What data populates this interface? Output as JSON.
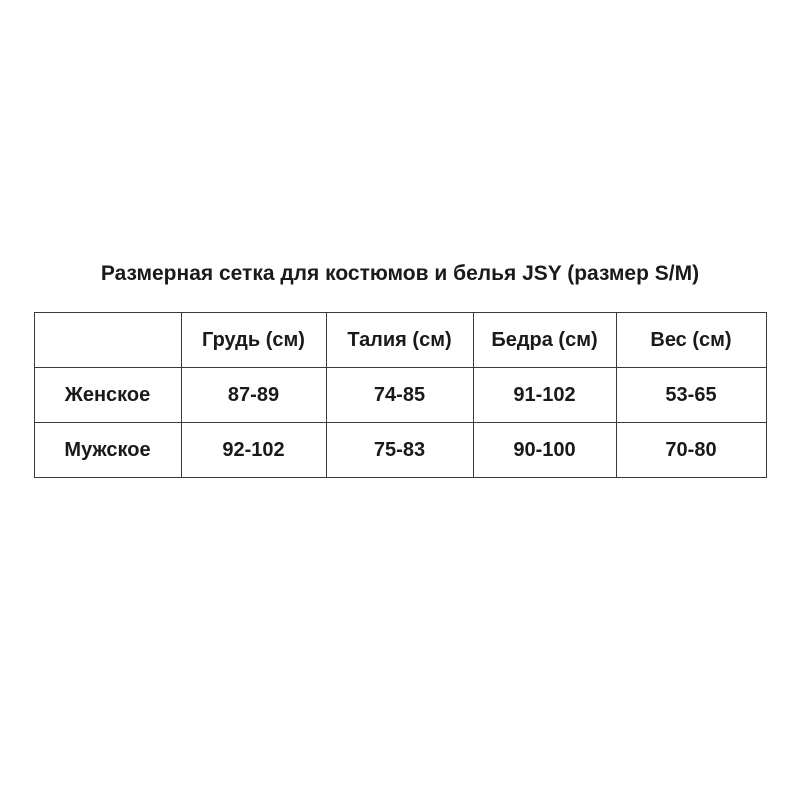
{
  "chart_data": {
    "type": "table",
    "title": "Размерная сетка для костюмов и белья JSY (размер S/M)",
    "columns": [
      "",
      "Грудь (см)",
      "Талия (см)",
      "Бедра (см)",
      "Вес (см)"
    ],
    "rows": [
      [
        "Женское",
        "87-89",
        "74-85",
        "91-102",
        "53-65"
      ],
      [
        "Мужское",
        "92-102",
        "75-83",
        "90-100",
        "70-80"
      ]
    ],
    "layout": {
      "grid": "on",
      "header_row": true,
      "row_label_column": true
    }
  },
  "colors": {
    "background": "#ffffff",
    "text": "#1a1a1a",
    "border": "#3a3a3a"
  }
}
